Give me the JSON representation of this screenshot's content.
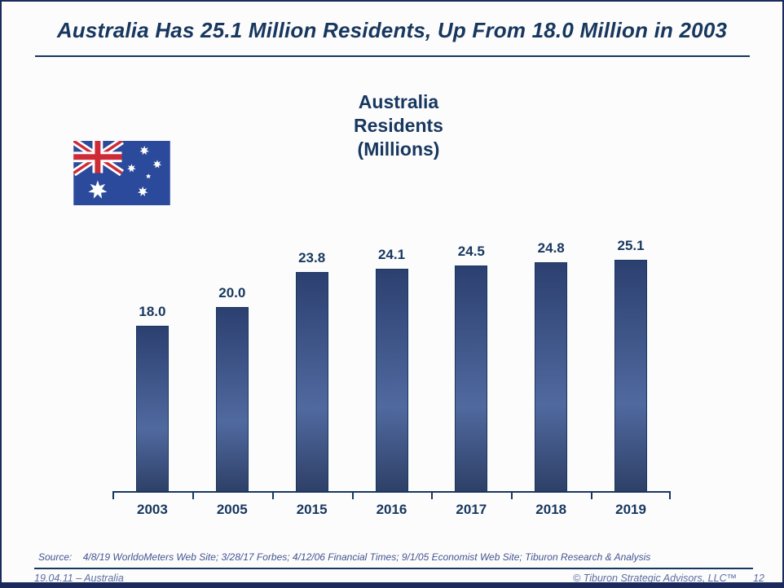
{
  "slide": {
    "title": "Australia Has 25.1 Million Residents, Up From 18.0 Million in 2003",
    "source": "Source:    4/8/19 WorldoMeters Web Site; 3/28/17 Forbes; 4/12/06 Financial Times; 9/1/05 Economist Web Site; Tiburon Research & Analysis",
    "footer_left": "19.04.11 – Australia",
    "footer_right": "© Tiburon Strategic Advisors, LLC™",
    "page_number": "12"
  },
  "chart_data": {
    "type": "bar",
    "title": "Australia\nResidents\n(Millions)",
    "categories": [
      "2003",
      "2005",
      "2015",
      "2016",
      "2017",
      "2018",
      "2019"
    ],
    "values": [
      18.0,
      20.0,
      23.8,
      24.1,
      24.5,
      24.8,
      25.1
    ],
    "value_labels": [
      "18.0",
      "20.0",
      "23.8",
      "24.1",
      "24.5",
      "24.8",
      "25.1"
    ],
    "xlabel": "",
    "ylabel": "Residents (Millions)",
    "ylim": [
      0,
      25.1
    ],
    "grid": false,
    "legend": "none",
    "value_label_position": "above-bars"
  },
  "colors": {
    "navy_text": "#17375e",
    "bar_top": "#2c4070",
    "bar_mid": "#50699f",
    "bar_border": "#17375e",
    "slide_border": "#1b2a5a",
    "source_text": "#44548e",
    "footer_text": "#5c6ca0",
    "flag_blue": "#2b4a9b",
    "flag_red": "#ce2b37"
  }
}
